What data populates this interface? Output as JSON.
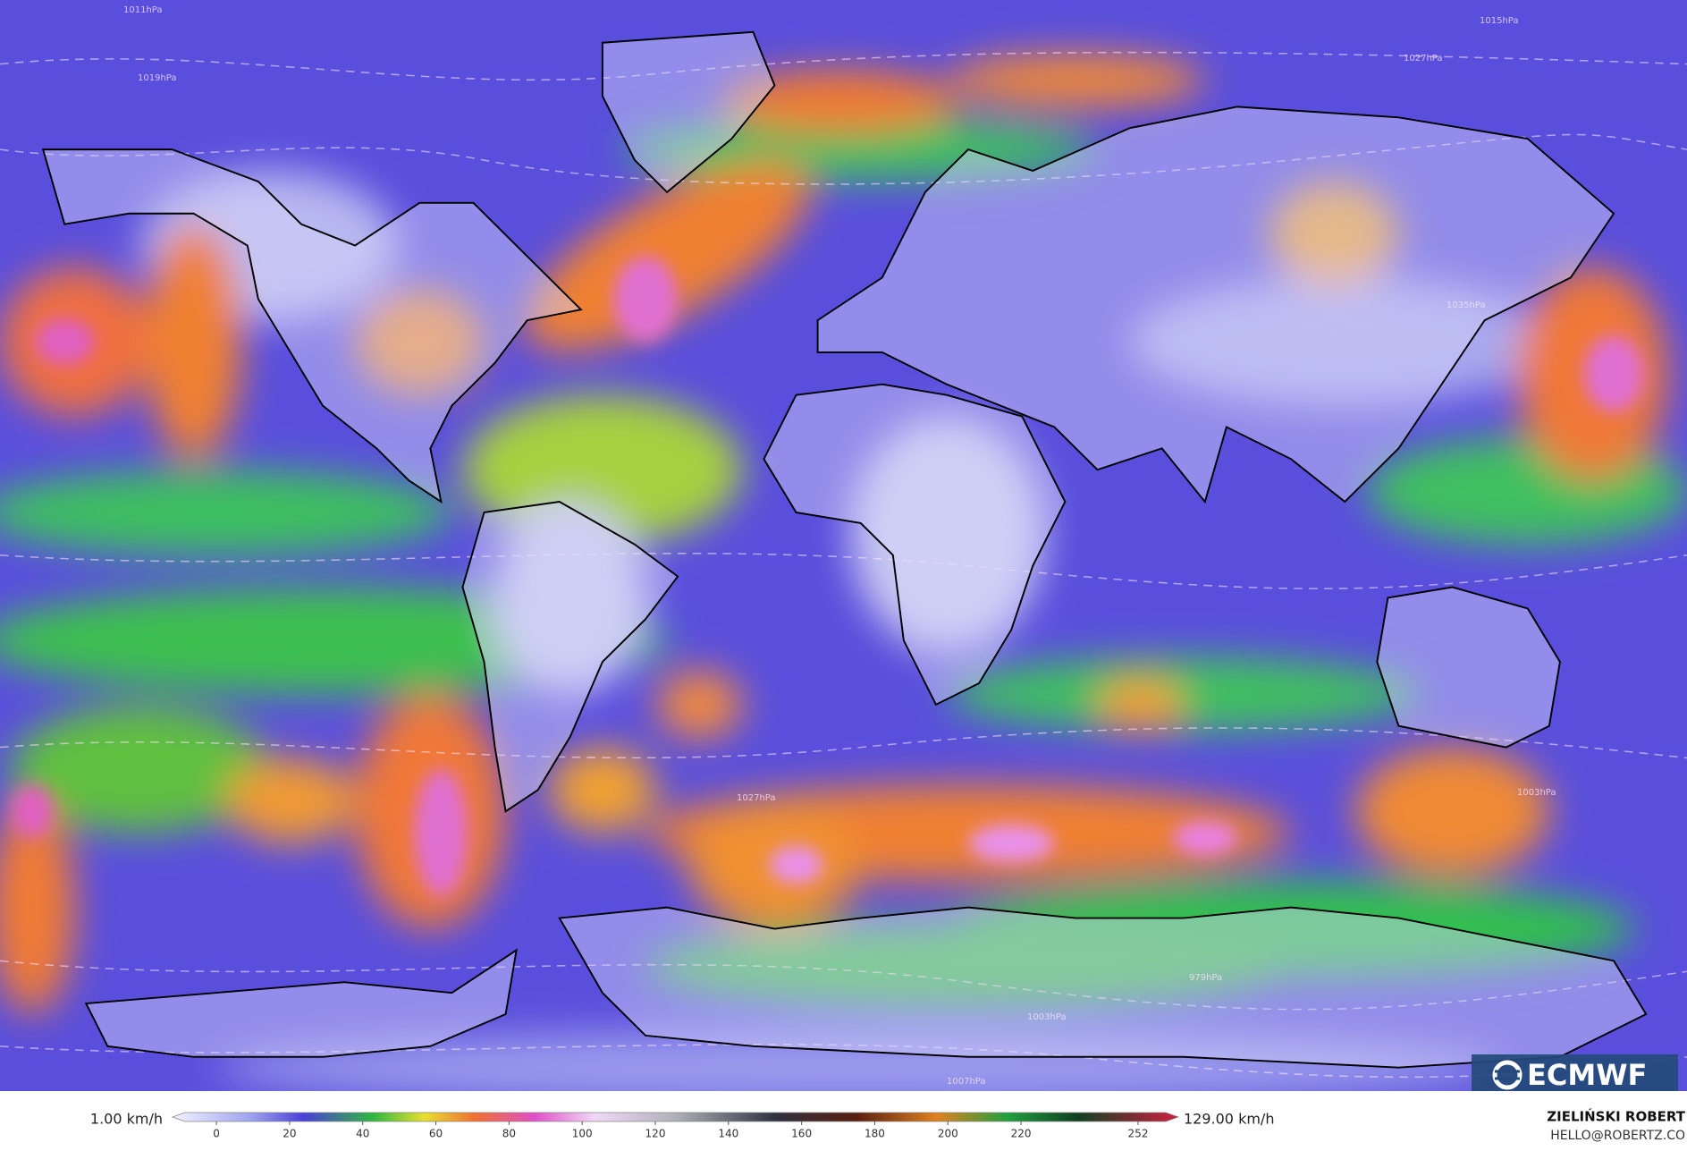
{
  "map": {
    "isobar_labels": [
      "1011hPa",
      "1019hPa",
      "1027hPa",
      "1015hPa",
      "1035hPa",
      "1027hPa",
      "1003hPa",
      "1003hPa",
      "979hPa",
      "1007hPa"
    ]
  },
  "colorbar": {
    "min_label": "1.00 km/h",
    "max_label": "129.00 km/h",
    "range": [
      -12,
      263
    ],
    "ticks": [
      0,
      20,
      40,
      60,
      80,
      100,
      120,
      140,
      160,
      180,
      200,
      220,
      252
    ]
  },
  "logo": "ECMWF",
  "author": {
    "name": "ZIELIŃSKI ROBERT",
    "contact": "HELLO@ROBERTZ.CO"
  }
}
